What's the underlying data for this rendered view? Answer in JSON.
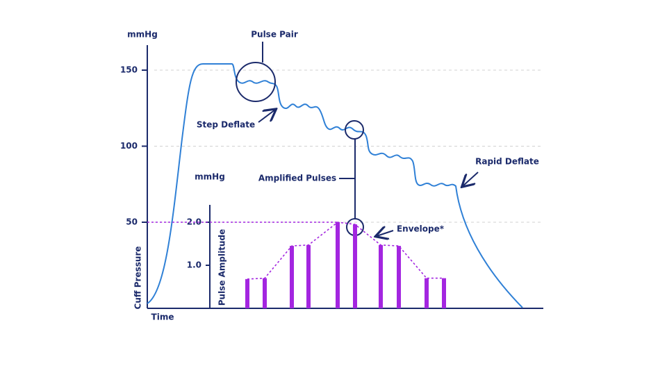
{
  "cuff_axis": {
    "unit": "mmHg",
    "label": "Cuff Pressure",
    "ticks": [
      150,
      100,
      50
    ]
  },
  "time_label": "Time",
  "amplitude_axis": {
    "unit": "mmHg",
    "label": "Pulse Amplitude",
    "ticks": [
      {
        "value": 2,
        "label": "2.0"
      },
      {
        "value": 1,
        "label": "1.0"
      }
    ],
    "values": [
      0.68,
      0.7,
      1.45,
      1.47,
      2.0,
      1.95,
      1.47,
      1.45,
      0.7,
      0.7
    ]
  },
  "annotations": {
    "pulse_pair": "Pulse Pair",
    "step_deflate": "Step Deflate",
    "amplified_pulses": "Amplified Pulses",
    "rapid_deflate": "Rapid Deflate",
    "envelope": "Envelope*"
  }
}
